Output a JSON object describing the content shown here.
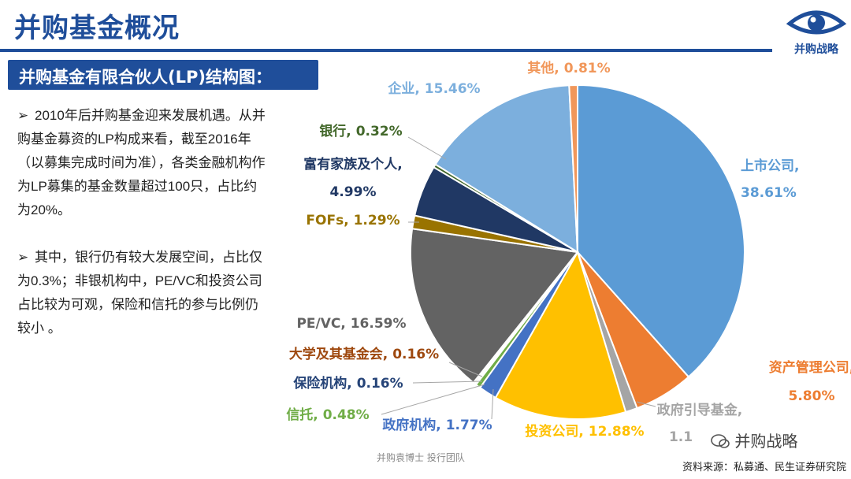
{
  "header": {
    "title": "并购基金概况",
    "logo_text": "并购战略",
    "subtitle": "并购基金有限合伙人(LP)结构图："
  },
  "bullets": [
    {
      "arrow": "➢",
      "text": "2010年后并购基金迎来发展机遇。从并购基金募资的LP构成来看，截至2016年（以募集完成时间为准），各类金融机构作为LP募集的基金数量超过100只，占比约为20%。"
    },
    {
      "arrow": "➢",
      "text": "其中，银行仍有较大发展空间，占比仅为0.3%；非银机构中，PE/VC和投资公司占比较为可观，保险和信托的参与比例仍较小 。"
    }
  ],
  "footer": {
    "left": "并购袁博士 投行团队",
    "source": "资料来源：私募通、民生证券研究院",
    "watermark": "并购战略"
  },
  "chart_data": {
    "type": "pie",
    "start_angle_deg": 0,
    "direction": "clockwise",
    "slices": [
      {
        "label": "上市公司",
        "value": 38.61,
        "display": "38.61%",
        "color": "#5b9bd5"
      },
      {
        "label": "资产管理公司",
        "value": 5.8,
        "display": "5.80%",
        "color": "#ed7d31"
      },
      {
        "label": "政府引导基金",
        "value": 1.15,
        "display": "1.1",
        "color": "#a5a5a5"
      },
      {
        "label": "投资公司",
        "value": 12.88,
        "display": "12.88%",
        "color": "#ffc000"
      },
      {
        "label": "政府机构",
        "value": 1.77,
        "display": "1.77%",
        "color": "#4472c4"
      },
      {
        "label": "信托",
        "value": 0.48,
        "display": "0.48%",
        "color": "#70ad47"
      },
      {
        "label": "保险机构",
        "value": 0.16,
        "display": "0.16%",
        "color": "#264478"
      },
      {
        "label": "大学及其基金会",
        "value": 0.16,
        "display": "0.16%",
        "color": "#9e480e"
      },
      {
        "label": "PE/VC",
        "value": 16.59,
        "display": "16.59%",
        "color": "#636363"
      },
      {
        "label": "FOFs",
        "value": 1.29,
        "display": "1.29%",
        "color": "#997300"
      },
      {
        "label": "富有家族及个人",
        "value": 4.99,
        "display": "4.99%",
        "color": "#203864"
      },
      {
        "label": "银行",
        "value": 0.32,
        "display": "0.32%",
        "color": "#43682b"
      },
      {
        "label": "企业",
        "value": 15.46,
        "display": "15.46%",
        "color": "#7cafdd"
      },
      {
        "label": "其他",
        "value": 0.81,
        "display": "0.81%",
        "color": "#f1975a"
      }
    ]
  }
}
